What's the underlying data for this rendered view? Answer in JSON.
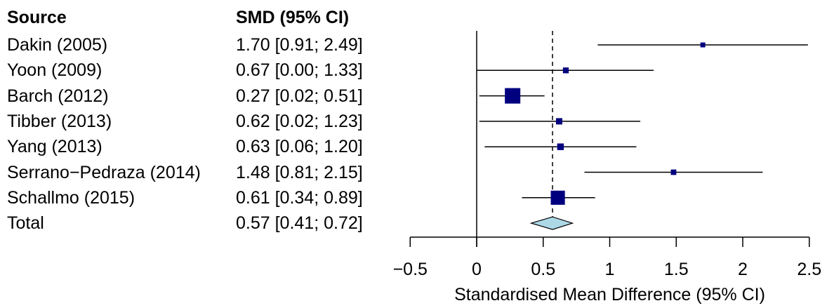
{
  "chart_data": {
    "type": "forest",
    "source_header": "Source",
    "ci_header": "SMD (95% CI)",
    "xlabel": "Standardised Mean Difference (95% CI)",
    "xlim": [
      -0.5,
      2.5
    ],
    "xticks": [
      -0.5,
      0,
      0.5,
      1,
      1.5,
      2,
      2.5
    ],
    "xtick_labels": [
      "−0.5",
      "0",
      "0.5",
      "1",
      "1.5",
      "2",
      "2.5"
    ],
    "null_line": 0,
    "pooled_line": 0.57,
    "marker_color": "#00007f",
    "diamond_color": "#add8e6",
    "studies": [
      {
        "source": "Dakin (2005)",
        "label": "1.70 [0.91; 2.49]",
        "est": 1.7,
        "lo": 0.91,
        "hi": 2.49,
        "weight": 0.6
      },
      {
        "source": "Yoon (2009)",
        "label": "0.67 [0.00; 1.33]",
        "est": 0.67,
        "lo": 0.0,
        "hi": 1.33,
        "weight": 0.85
      },
      {
        "source": "Barch (2012)",
        "label": "0.27 [0.02; 0.51]",
        "est": 0.27,
        "lo": 0.02,
        "hi": 0.51,
        "weight": 6.0
      },
      {
        "source": "Tibber (2013)",
        "label": "0.62 [0.02; 1.23]",
        "est": 0.62,
        "lo": 0.02,
        "hi": 1.23,
        "weight": 1.0
      },
      {
        "source": "Yang (2013)",
        "label": "0.63 [0.06; 1.20]",
        "est": 0.63,
        "lo": 0.06,
        "hi": 1.2,
        "weight": 1.1
      },
      {
        "source": "Serrano−Pedraza (2014)",
        "label": "1.48 [0.81; 2.15]",
        "est": 1.48,
        "lo": 0.81,
        "hi": 2.15,
        "weight": 0.75
      },
      {
        "source": "Schallmo (2015)",
        "label": "0.61 [0.34; 0.89]",
        "est": 0.61,
        "lo": 0.34,
        "hi": 0.89,
        "weight": 5.0
      }
    ],
    "total": {
      "source": "Total",
      "label": "0.57 [0.41; 0.72]",
      "est": 0.57,
      "lo": 0.41,
      "hi": 0.72
    }
  }
}
